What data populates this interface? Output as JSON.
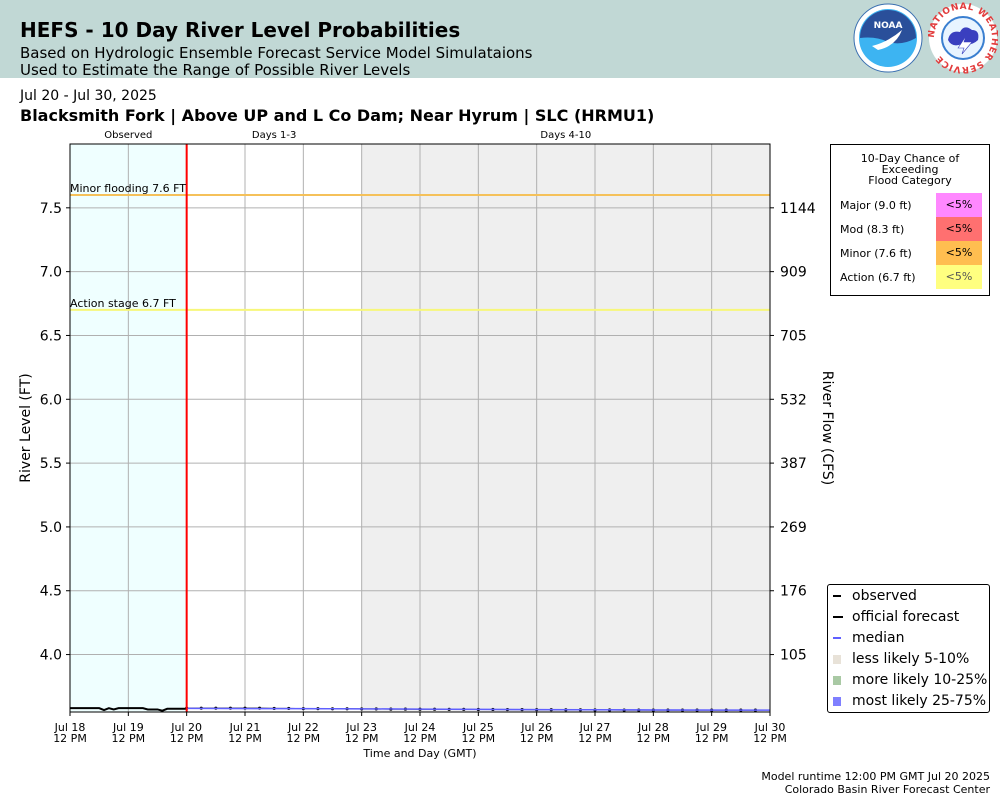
{
  "header": {
    "title": "HEFS - 10 Day River Level Probabilities",
    "subtitle1": "Based on Hydrologic Ensemble Forecast Service Model Simulataions",
    "subtitle2": "Used to Estimate the Range of Possible River Levels",
    "noaa_logo_text": "NOAA",
    "nws_logo_text": "NATIONAL WEATHER SERVICE"
  },
  "date_range": "Jul 20 - Jul 30, 2025",
  "chart_title": "Blacksmith Fork | Above UP and L Co Dam; Near Hyrum | SLC (HRMU1)",
  "chart_data": {
    "type": "line",
    "xlabel": "Time and Day (GMT)",
    "ylabel": "River Level (FT)",
    "y2label": "River Flow (CFS)",
    "ylim": [
      3.55,
      8.0
    ],
    "yticks": [
      4.0,
      4.5,
      5.0,
      5.5,
      6.0,
      6.5,
      7.0,
      7.5
    ],
    "ytick_labels": [
      "4.0",
      "4.5",
      "5.0",
      "5.5",
      "6.0",
      "6.5",
      "7.0",
      "7.5"
    ],
    "xlim": [
      "2025-07-18T12:00Z",
      "2025-07-30T12:00Z"
    ],
    "xtick_labels": [
      [
        "Jul 18",
        "12 PM"
      ],
      [
        "Jul 19",
        "12 PM"
      ],
      [
        "Jul 20",
        "12 PM"
      ],
      [
        "Jul 21",
        "12 PM"
      ],
      [
        "Jul 22",
        "12 PM"
      ],
      [
        "Jul 23",
        "12 PM"
      ],
      [
        "Jul 24",
        "12 PM"
      ],
      [
        "Jul 25",
        "12 PM"
      ],
      [
        "Jul 26",
        "12 PM"
      ],
      [
        "Jul 27",
        "12 PM"
      ],
      [
        "Jul 28",
        "12 PM"
      ],
      [
        "Jul 29",
        "12 PM"
      ],
      [
        "Jul 30",
        "12 PM"
      ]
    ],
    "flow_ticks": [
      {
        "stage": 4.0,
        "label": "105"
      },
      {
        "stage": 4.5,
        "label": "176"
      },
      {
        "stage": 5.0,
        "label": "269"
      },
      {
        "stage": 5.5,
        "label": "387"
      },
      {
        "stage": 6.0,
        "label": "532"
      },
      {
        "stage": 6.5,
        "label": "705"
      },
      {
        "stage": 7.0,
        "label": "909"
      },
      {
        "stage": 7.5,
        "label": "1144"
      }
    ],
    "periods": [
      {
        "label": "Observed",
        "start": "2025-07-18T12:00Z",
        "end": "2025-07-20T12:00Z",
        "color": "#efffff"
      },
      {
        "label": "Days 1-3",
        "start": "2025-07-20T12:00Z",
        "end": "2025-07-23T12:00Z",
        "color": "#ffffff"
      },
      {
        "label": "Days 4-10",
        "start": "2025-07-23T12:00Z",
        "end": "2025-07-30T12:00Z",
        "color": "#efefef"
      }
    ],
    "forecast_start": "2025-07-20T12:00Z",
    "thresholds": [
      {
        "label": "Minor flooding 7.6 FT",
        "value": 7.6,
        "color": "#f5c15a"
      },
      {
        "label": "Action stage 6.7 FT",
        "value": 6.7,
        "color": "#f7f77a"
      }
    ],
    "series": [
      {
        "name": "observed",
        "color": "#000000",
        "points": [
          [
            "2025-07-18T12:00Z",
            3.58
          ],
          [
            "2025-07-18T18:00Z",
            3.58
          ],
          [
            "2025-07-19T00:00Z",
            3.58
          ],
          [
            "2025-07-19T02:00Z",
            3.565
          ],
          [
            "2025-07-19T04:00Z",
            3.58
          ],
          [
            "2025-07-19T06:00Z",
            3.57
          ],
          [
            "2025-07-19T08:00Z",
            3.58
          ],
          [
            "2025-07-19T12:00Z",
            3.58
          ],
          [
            "2025-07-19T18:00Z",
            3.58
          ],
          [
            "2025-07-19T20:00Z",
            3.57
          ],
          [
            "2025-07-20T00:00Z",
            3.57
          ],
          [
            "2025-07-20T02:00Z",
            3.56
          ],
          [
            "2025-07-20T04:00Z",
            3.575
          ],
          [
            "2025-07-20T08:00Z",
            3.575
          ],
          [
            "2025-07-20T12:00Z",
            3.575
          ]
        ]
      },
      {
        "name": "official forecast",
        "color": "#000000",
        "points": [
          [
            "2025-07-20T12:00Z",
            3.58
          ],
          [
            "2025-07-20T18:00Z",
            3.58
          ],
          [
            "2025-07-21T00:00Z",
            3.58
          ],
          [
            "2025-07-21T06:00Z",
            3.58
          ],
          [
            "2025-07-21T12:00Z",
            3.58
          ],
          [
            "2025-07-21T18:00Z",
            3.58
          ],
          [
            "2025-07-22T00:00Z",
            3.578
          ],
          [
            "2025-07-22T06:00Z",
            3.578
          ],
          [
            "2025-07-22T12:00Z",
            3.576
          ],
          [
            "2025-07-22T18:00Z",
            3.576
          ],
          [
            "2025-07-23T00:00Z",
            3.575
          ],
          [
            "2025-07-23T06:00Z",
            3.575
          ],
          [
            "2025-07-23T12:00Z",
            3.574
          ],
          [
            "2025-07-23T18:00Z",
            3.574
          ],
          [
            "2025-07-24T00:00Z",
            3.573
          ],
          [
            "2025-07-24T06:00Z",
            3.573
          ],
          [
            "2025-07-24T12:00Z",
            3.572
          ],
          [
            "2025-07-24T18:00Z",
            3.572
          ],
          [
            "2025-07-25T00:00Z",
            3.571
          ],
          [
            "2025-07-25T06:00Z",
            3.571
          ],
          [
            "2025-07-25T12:00Z",
            3.57
          ],
          [
            "2025-07-25T18:00Z",
            3.57
          ],
          [
            "2025-07-26T00:00Z",
            3.569
          ],
          [
            "2025-07-26T06:00Z",
            3.569
          ],
          [
            "2025-07-26T12:00Z",
            3.568
          ],
          [
            "2025-07-26T18:00Z",
            3.568
          ],
          [
            "2025-07-27T00:00Z",
            3.567
          ],
          [
            "2025-07-27T06:00Z",
            3.567
          ],
          [
            "2025-07-27T12:00Z",
            3.566
          ],
          [
            "2025-07-27T18:00Z",
            3.566
          ],
          [
            "2025-07-28T00:00Z",
            3.565
          ],
          [
            "2025-07-28T06:00Z",
            3.565
          ],
          [
            "2025-07-28T12:00Z",
            3.565
          ],
          [
            "2025-07-28T18:00Z",
            3.565
          ],
          [
            "2025-07-29T00:00Z",
            3.565
          ],
          [
            "2025-07-29T06:00Z",
            3.565
          ],
          [
            "2025-07-29T12:00Z",
            3.565
          ],
          [
            "2025-07-29T18:00Z",
            3.565
          ],
          [
            "2025-07-30T00:00Z",
            3.565
          ],
          [
            "2025-07-30T06:00Z",
            3.565
          ]
        ]
      },
      {
        "name": "median",
        "color": "#6060ff",
        "points": [
          [
            "2025-07-20T12:00Z",
            3.578
          ],
          [
            "2025-07-22T12:00Z",
            3.576
          ],
          [
            "2025-07-24T12:00Z",
            3.573
          ],
          [
            "2025-07-26T12:00Z",
            3.569
          ],
          [
            "2025-07-28T12:00Z",
            3.566
          ],
          [
            "2025-07-30T12:00Z",
            3.565
          ]
        ]
      }
    ],
    "bands": [
      {
        "name": "less likely 5-10%",
        "color": "#e8e2d8"
      },
      {
        "name": "more likely 10-25%",
        "color": "#a9c9a4"
      },
      {
        "name": "most likely 25-75%",
        "color": "#7f7fff",
        "lower": [
          [
            "2025-07-20T12:00Z",
            3.574
          ],
          [
            "2025-07-30T12:00Z",
            3.562
          ]
        ],
        "upper": [
          [
            "2025-07-20T12:00Z",
            3.582
          ],
          [
            "2025-07-30T12:00Z",
            3.568
          ]
        ]
      }
    ]
  },
  "prob_table": {
    "title": [
      "10-Day Chance of",
      "Exceeding",
      "Flood Category"
    ],
    "rows": [
      {
        "label": "Major (9.0 ft)",
        "value": "<5%",
        "color": "#ff88ff"
      },
      {
        "label": "Mod (8.3 ft)",
        "value": "<5%",
        "color": "#ff7070"
      },
      {
        "label": "Minor (7.6 ft)",
        "value": "<5%",
        "color": "#ffbe50"
      },
      {
        "label": "Action (6.7 ft)",
        "value": "<5%",
        "color": "#ffff80"
      }
    ]
  },
  "legend": [
    {
      "label": "observed",
      "kind": "line",
      "color": "#000000"
    },
    {
      "label": "official forecast",
      "kind": "arrow",
      "color": "#000000"
    },
    {
      "label": "median",
      "kind": "line",
      "color": "#6060ff"
    },
    {
      "label": "less likely 5-10%",
      "kind": "swatch",
      "color": "#e8e2d8"
    },
    {
      "label": "more likely 10-25%",
      "kind": "swatch",
      "color": "#a9c9a4"
    },
    {
      "label": "most likely 25-75%",
      "kind": "swatch",
      "color": "#7f7fff"
    }
  ],
  "footer": {
    "runtime": "Model runtime 12:00 PM GMT Jul 20 2025",
    "center": "Colorado Basin River Forecast Center"
  }
}
